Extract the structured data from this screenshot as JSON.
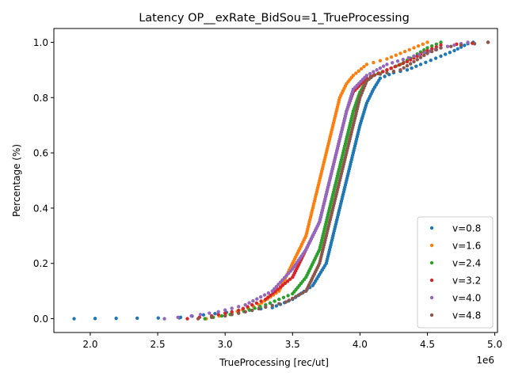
{
  "chart_data": {
    "type": "scatter",
    "title": "Latency OP__exRate_BidSou=1_TrueProcessing",
    "xlabel": "TrueProcessing [rec/ut]",
    "ylabel": "Percentage (%)",
    "x_offset_label": "1e6",
    "xlim": [
      1.73,
      5.02
    ],
    "ylim": [
      -0.05,
      1.05
    ],
    "xticks": [
      2.0,
      2.5,
      3.0,
      3.5,
      4.0,
      4.5,
      5.0
    ],
    "xtick_labels": [
      "2.0",
      "2.5",
      "3.0",
      "3.5",
      "4.0",
      "4.5",
      "5.0"
    ],
    "yticks": [
      0.0,
      0.2,
      0.4,
      0.6,
      0.8,
      1.0
    ],
    "ytick_labels": [
      "0.0",
      "0.2",
      "0.4",
      "0.6",
      "0.8",
      "1.0"
    ],
    "legend_position": "lower-right",
    "series": [
      {
        "name": "v=0.8",
        "color": "#1f77b4",
        "points": [
          [
            1.88,
            0.0
          ],
          [
            2.66,
            0.003
          ],
          [
            2.67,
            0.005
          ],
          [
            3.35,
            0.04
          ],
          [
            3.5,
            0.07
          ],
          [
            3.65,
            0.12
          ],
          [
            3.75,
            0.2
          ],
          [
            3.8,
            0.3
          ],
          [
            3.85,
            0.4
          ],
          [
            3.9,
            0.5
          ],
          [
            3.95,
            0.6
          ],
          [
            4.0,
            0.7
          ],
          [
            4.05,
            0.78
          ],
          [
            4.1,
            0.83
          ],
          [
            4.15,
            0.87
          ],
          [
            4.25,
            0.89
          ],
          [
            4.35,
            0.9
          ],
          [
            4.45,
            0.92
          ],
          [
            4.6,
            0.95
          ],
          [
            4.7,
            0.97
          ],
          [
            4.8,
            0.995
          ],
          [
            4.84,
            1.0
          ]
        ]
      },
      {
        "name": "v=1.6",
        "color": "#ff7f0e",
        "points": [
          [
            2.86,
            0.0
          ],
          [
            3.05,
            0.02
          ],
          [
            3.25,
            0.05
          ],
          [
            3.4,
            0.1
          ],
          [
            3.5,
            0.2
          ],
          [
            3.6,
            0.3
          ],
          [
            3.65,
            0.4
          ],
          [
            3.7,
            0.5
          ],
          [
            3.75,
            0.6
          ],
          [
            3.8,
            0.7
          ],
          [
            3.85,
            0.8
          ],
          [
            3.9,
            0.85
          ],
          [
            3.95,
            0.88
          ],
          [
            4.05,
            0.92
          ],
          [
            4.2,
            0.94
          ],
          [
            4.3,
            0.96
          ],
          [
            4.4,
            0.98
          ],
          [
            4.5,
            1.0
          ]
        ]
      },
      {
        "name": "v=2.4",
        "color": "#2ca02c",
        "points": [
          [
            2.85,
            0.0
          ],
          [
            3.1,
            0.02
          ],
          [
            3.3,
            0.05
          ],
          [
            3.5,
            0.09
          ],
          [
            3.6,
            0.15
          ],
          [
            3.7,
            0.25
          ],
          [
            3.75,
            0.35
          ],
          [
            3.8,
            0.45
          ],
          [
            3.85,
            0.55
          ],
          [
            3.9,
            0.65
          ],
          [
            3.95,
            0.75
          ],
          [
            4.0,
            0.82
          ],
          [
            4.05,
            0.86
          ],
          [
            4.1,
            0.88
          ],
          [
            4.2,
            0.9
          ],
          [
            4.3,
            0.92
          ],
          [
            4.4,
            0.95
          ],
          [
            4.5,
            0.98
          ],
          [
            4.6,
            1.0
          ]
        ]
      },
      {
        "name": "v=3.2",
        "color": "#d62728",
        "points": [
          [
            2.72,
            0.0
          ],
          [
            2.9,
            0.01
          ],
          [
            3.1,
            0.03
          ],
          [
            3.3,
            0.07
          ],
          [
            3.5,
            0.15
          ],
          [
            3.6,
            0.25
          ],
          [
            3.7,
            0.35
          ],
          [
            3.75,
            0.45
          ],
          [
            3.8,
            0.55
          ],
          [
            3.85,
            0.65
          ],
          [
            3.9,
            0.75
          ],
          [
            3.95,
            0.82
          ],
          [
            4.05,
            0.87
          ],
          [
            4.2,
            0.9
          ],
          [
            4.35,
            0.93
          ],
          [
            4.5,
            0.97
          ],
          [
            4.6,
            0.99
          ],
          [
            4.95,
            1.0
          ]
        ]
      },
      {
        "name": "v=4.0",
        "color": "#9467bd",
        "points": [
          [
            2.55,
            0.0
          ],
          [
            2.75,
            0.01
          ],
          [
            2.95,
            0.025
          ],
          [
            3.15,
            0.05
          ],
          [
            3.35,
            0.1
          ],
          [
            3.5,
            0.18
          ],
          [
            3.6,
            0.25
          ],
          [
            3.7,
            0.35
          ],
          [
            3.75,
            0.45
          ],
          [
            3.8,
            0.55
          ],
          [
            3.85,
            0.65
          ],
          [
            3.9,
            0.75
          ],
          [
            3.95,
            0.83
          ],
          [
            4.05,
            0.88
          ],
          [
            4.2,
            0.92
          ],
          [
            4.4,
            0.95
          ],
          [
            4.6,
            0.98
          ],
          [
            4.8,
            1.0
          ]
        ]
      },
      {
        "name": "v=4.8",
        "color": "#8c564b",
        "points": [
          [
            2.8,
            0.0
          ],
          [
            3.0,
            0.01
          ],
          [
            3.2,
            0.03
          ],
          [
            3.45,
            0.06
          ],
          [
            3.6,
            0.1
          ],
          [
            3.7,
            0.2
          ],
          [
            3.75,
            0.3
          ],
          [
            3.8,
            0.4
          ],
          [
            3.85,
            0.5
          ],
          [
            3.9,
            0.6
          ],
          [
            3.95,
            0.7
          ],
          [
            4.0,
            0.8
          ],
          [
            4.05,
            0.86
          ],
          [
            4.1,
            0.88
          ],
          [
            4.2,
            0.89
          ],
          [
            4.3,
            0.9
          ],
          [
            4.4,
            0.93
          ],
          [
            4.5,
            0.96
          ],
          [
            4.6,
            0.98
          ],
          [
            4.75,
            0.99
          ],
          [
            4.95,
            1.0
          ]
        ]
      }
    ]
  }
}
